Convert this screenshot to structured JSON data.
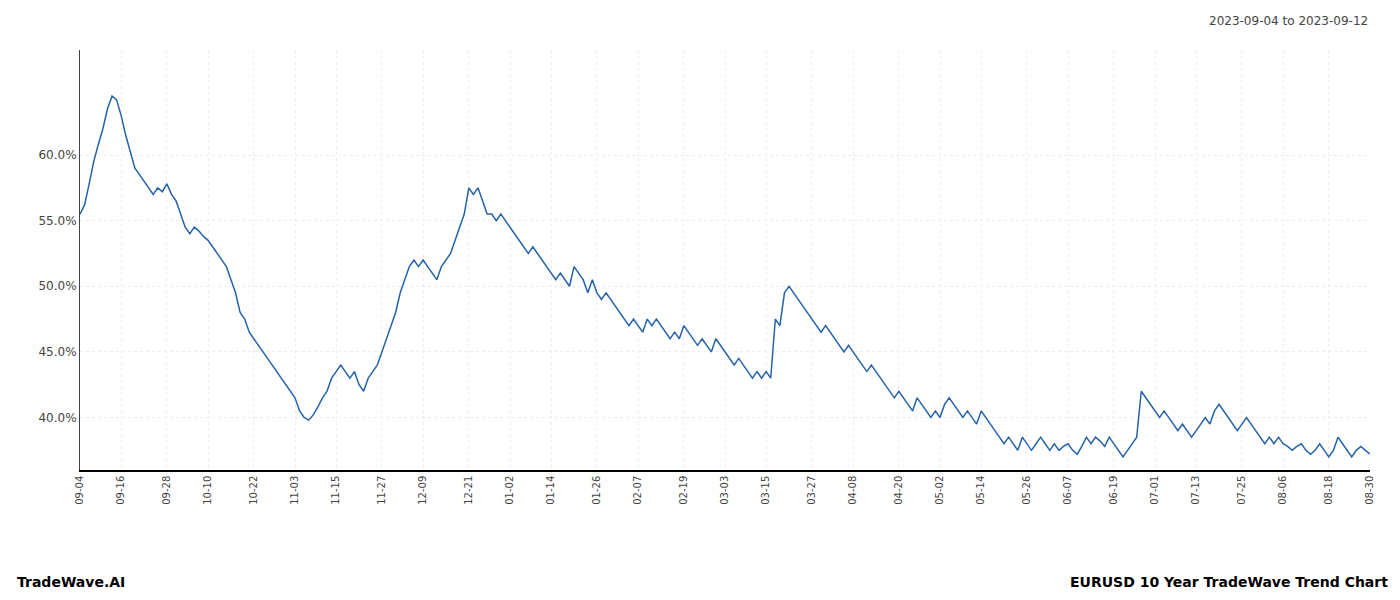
{
  "chart_data": {
    "type": "line",
    "annotations": [
      "2023-09-04 to 2023-09-12",
      "TradeWave.AI",
      "EURUSD 10 Year TradeWave Trend Chart"
    ],
    "color": "#2563a8",
    "grid": true,
    "ylim": [
      36.0,
      68.0
    ],
    "yticks": [
      {
        "value": 40.0,
        "label": "40.0%"
      },
      {
        "value": 45.0,
        "label": "45.0%"
      },
      {
        "value": 50.0,
        "label": "50.0%"
      },
      {
        "value": 55.0,
        "label": "55.0%"
      },
      {
        "value": 60.0,
        "label": "60.0%"
      }
    ],
    "categories": [
      "09-04",
      null,
      null,
      null,
      null,
      null,
      null,
      null,
      null,
      "09-16",
      null,
      null,
      null,
      null,
      null,
      null,
      null,
      null,
      null,
      "09-28",
      null,
      null,
      null,
      null,
      null,
      null,
      null,
      null,
      "10-10",
      null,
      null,
      null,
      null,
      null,
      null,
      null,
      null,
      null,
      "10-22",
      null,
      null,
      null,
      null,
      null,
      null,
      null,
      null,
      "11-03",
      null,
      null,
      null,
      null,
      null,
      null,
      null,
      null,
      "11-15",
      null,
      null,
      null,
      null,
      null,
      null,
      null,
      null,
      null,
      "11-27",
      null,
      null,
      null,
      null,
      null,
      null,
      null,
      null,
      "12-09",
      null,
      null,
      null,
      null,
      null,
      null,
      null,
      null,
      null,
      "12-21",
      null,
      null,
      null,
      null,
      null,
      null,
      null,
      null,
      "01-02",
      null,
      null,
      null,
      null,
      null,
      null,
      null,
      null,
      "01-14",
      null,
      null,
      null,
      null,
      null,
      null,
      null,
      null,
      null,
      "01-26",
      null,
      null,
      null,
      null,
      null,
      null,
      null,
      null,
      "02-07",
      null,
      null,
      null,
      null,
      null,
      null,
      null,
      null,
      null,
      "02-19",
      null,
      null,
      null,
      null,
      null,
      null,
      null,
      null,
      "03-03",
      null,
      null,
      null,
      null,
      null,
      null,
      null,
      null,
      "03-15",
      null,
      null,
      null,
      null,
      null,
      null,
      null,
      null,
      null,
      "03-27",
      null,
      null,
      null,
      null,
      null,
      null,
      null,
      null,
      "04-08",
      null,
      null,
      null,
      null,
      null,
      null,
      null,
      null,
      null,
      "04-20",
      null,
      null,
      null,
      null,
      null,
      null,
      null,
      null,
      "05-02",
      null,
      null,
      null,
      null,
      null,
      null,
      null,
      null,
      "05-14",
      null,
      null,
      null,
      null,
      null,
      null,
      null,
      null,
      null,
      "05-26",
      null,
      null,
      null,
      null,
      null,
      null,
      null,
      null,
      "06-07",
      null,
      null,
      null,
      null,
      null,
      null,
      null,
      null,
      null,
      "06-19",
      null,
      null,
      null,
      null,
      null,
      null,
      null,
      null,
      "07-01",
      null,
      null,
      null,
      null,
      null,
      null,
      null,
      null,
      "07-13",
      null,
      null,
      null,
      null,
      null,
      null,
      null,
      null,
      null,
      "07-25",
      null,
      null,
      null,
      null,
      null,
      null,
      null,
      null,
      "08-06",
      null,
      null,
      null,
      null,
      null,
      null,
      null,
      null,
      null,
      "08-18",
      null,
      null,
      null,
      null,
      null,
      null,
      null,
      null,
      "08-30"
    ],
    "values": [
      55.5,
      56.2,
      57.8,
      59.5,
      60.8,
      62.0,
      63.5,
      64.5,
      64.2,
      63.0,
      61.5,
      60.2,
      59.0,
      58.5,
      58.0,
      57.5,
      57.0,
      57.5,
      57.2,
      57.8,
      57.0,
      56.5,
      55.5,
      54.5,
      54.0,
      54.5,
      54.2,
      53.8,
      53.5,
      53.0,
      52.5,
      52.0,
      51.5,
      50.5,
      49.5,
      48.0,
      47.5,
      46.5,
      46.0,
      45.5,
      45.0,
      44.5,
      44.0,
      43.5,
      43.0,
      42.5,
      42.0,
      41.5,
      40.5,
      40.0,
      39.8,
      40.2,
      40.8,
      41.5,
      42.0,
      43.0,
      43.5,
      44.0,
      43.5,
      43.0,
      43.5,
      42.5,
      42.0,
      43.0,
      43.5,
      44.0,
      45.0,
      46.0,
      47.0,
      48.0,
      49.5,
      50.5,
      51.5,
      52.0,
      51.5,
      52.0,
      51.5,
      51.0,
      50.5,
      51.5,
      52.0,
      52.5,
      53.5,
      54.5,
      55.5,
      57.5,
      57.0,
      57.5,
      56.5,
      55.5,
      55.5,
      55.0,
      55.5,
      55.0,
      54.5,
      54.0,
      53.5,
      53.0,
      52.5,
      53.0,
      52.5,
      52.0,
      51.5,
      51.0,
      50.5,
      51.0,
      50.5,
      50.0,
      51.5,
      51.0,
      50.5,
      49.5,
      50.5,
      49.5,
      49.0,
      49.5,
      49.0,
      48.5,
      48.0,
      47.5,
      47.0,
      47.5,
      47.0,
      46.5,
      47.5,
      47.0,
      47.5,
      47.0,
      46.5,
      46.0,
      46.5,
      46.0,
      47.0,
      46.5,
      46.0,
      45.5,
      46.0,
      45.5,
      45.0,
      46.0,
      45.5,
      45.0,
      44.5,
      44.0,
      44.5,
      44.0,
      43.5,
      43.0,
      43.5,
      43.0,
      43.5,
      43.0,
      47.5,
      47.0,
      49.5,
      50.0,
      49.5,
      49.0,
      48.5,
      48.0,
      47.5,
      47.0,
      46.5,
      47.0,
      46.5,
      46.0,
      45.5,
      45.0,
      45.5,
      45.0,
      44.5,
      44.0,
      43.5,
      44.0,
      43.5,
      43.0,
      42.5,
      42.0,
      41.5,
      42.0,
      41.5,
      41.0,
      40.5,
      41.5,
      41.0,
      40.5,
      40.0,
      40.5,
      40.0,
      41.0,
      41.5,
      41.0,
      40.5,
      40.0,
      40.5,
      40.0,
      39.5,
      40.5,
      40.0,
      39.5,
      39.0,
      38.5,
      38.0,
      38.5,
      38.0,
      37.5,
      38.5,
      38.0,
      37.5,
      38.0,
      38.5,
      38.0,
      37.5,
      38.0,
      37.5,
      37.8,
      38.0,
      37.5,
      37.2,
      37.8,
      38.5,
      38.0,
      38.5,
      38.2,
      37.8,
      38.5,
      38.0,
      37.5,
      37.0,
      37.5,
      38.0,
      38.5,
      42.0,
      41.5,
      41.0,
      40.5,
      40.0,
      40.5,
      40.0,
      39.5,
      39.0,
      39.5,
      39.0,
      38.5,
      39.0,
      39.5,
      40.0,
      39.5,
      40.5,
      41.0,
      40.5,
      40.0,
      39.5,
      39.0,
      39.5,
      40.0,
      39.5,
      39.0,
      38.5,
      38.0,
      38.5,
      38.0,
      38.5,
      38.0,
      37.8,
      37.5,
      37.8,
      38.0,
      37.5,
      37.2,
      37.5,
      38.0,
      37.5,
      37.0,
      37.5,
      38.5,
      38.0,
      37.5,
      37.0,
      37.5,
      37.8,
      37.5,
      37.2
    ]
  }
}
